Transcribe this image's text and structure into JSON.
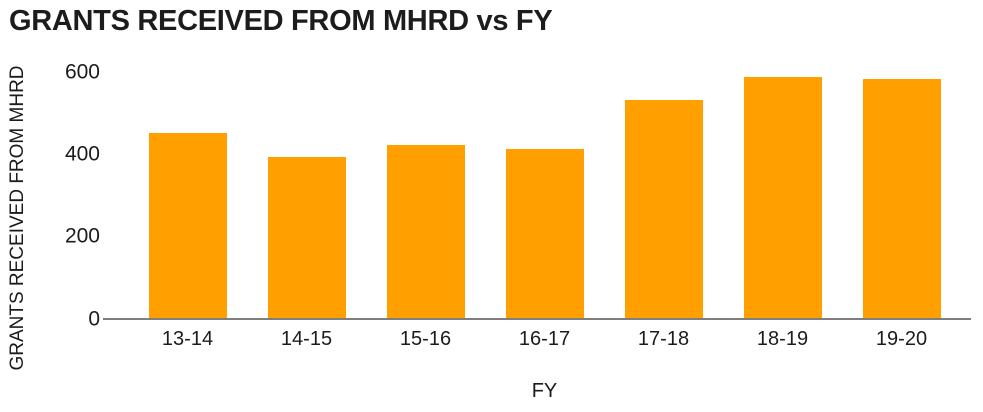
{
  "chart_data": {
    "type": "bar",
    "title": "GRANTS RECEIVED FROM MHRD vs FY",
    "xlabel": "FY",
    "ylabel": "GRANTS RECEIVED FROM MHRD",
    "categories": [
      "13-14",
      "14-15",
      "15-16",
      "16-17",
      "17-18",
      "18-19",
      "19-20"
    ],
    "values": [
      450,
      390,
      420,
      410,
      530,
      585,
      580
    ],
    "ylim": [
      0,
      600
    ],
    "yticks": [
      0,
      200,
      400,
      600
    ],
    "grid": false,
    "legend": false,
    "colors": {
      "bar": "#FFA000",
      "axis_line": "#7F7F7F",
      "text": "#1C1C1C"
    }
  }
}
